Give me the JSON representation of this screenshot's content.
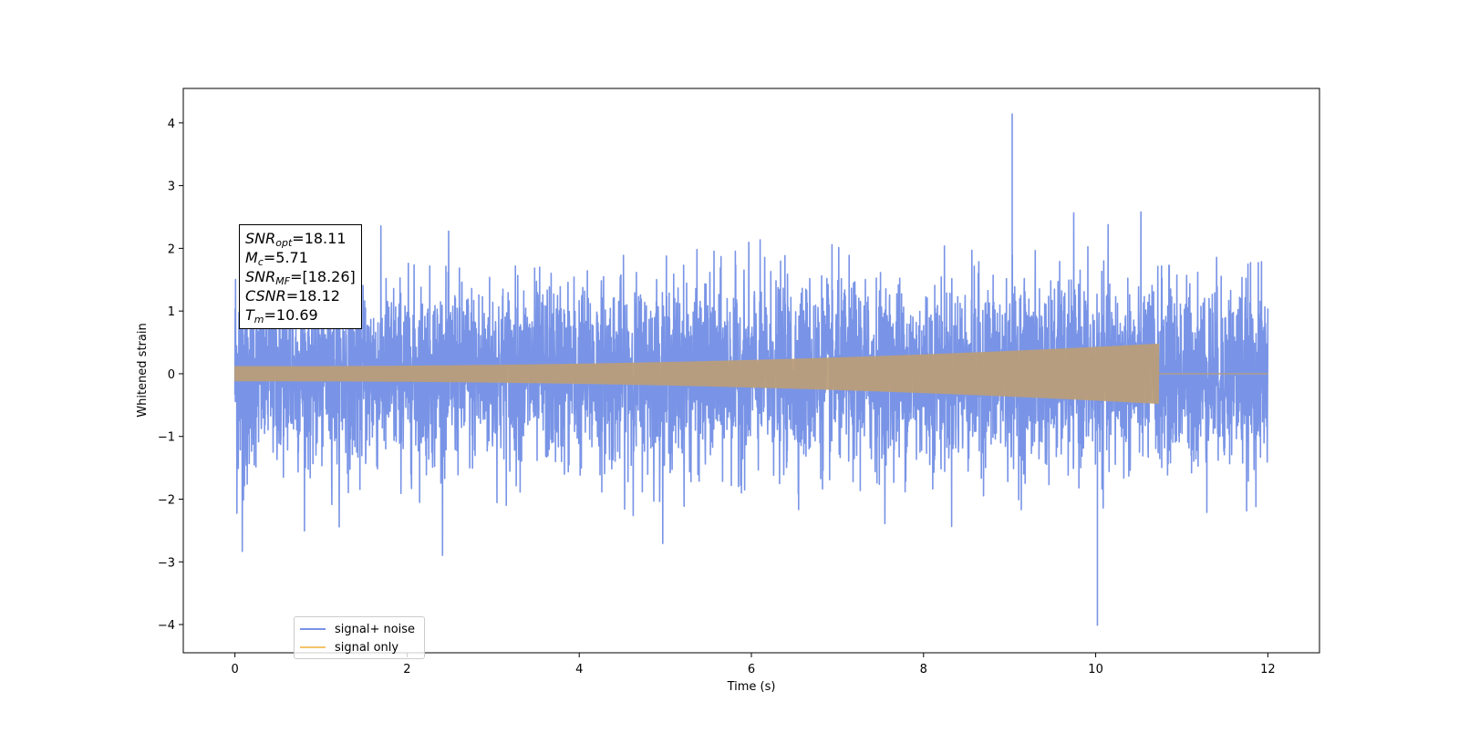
{
  "chart_data": {
    "type": "line",
    "title": "",
    "xlabel": "Time (s)",
    "ylabel": "Whitened strain",
    "xlim": [
      -0.6,
      12.6
    ],
    "ylim": [
      -4.45,
      4.55
    ],
    "x_ticks": [
      0,
      2,
      4,
      6,
      8,
      10,
      12
    ],
    "y_ticks": [
      -4,
      -3,
      -2,
      -1,
      0,
      1,
      2,
      3,
      4
    ],
    "grid": false,
    "legend_position": "lower-left",
    "series": [
      {
        "name": "signal+ noise",
        "color": "#7994e6",
        "description_values": {
          "t_start": 0,
          "t_end": 12,
          "approx_max": 4.15,
          "approx_max_t": 9.03,
          "approx_min": -4.02,
          "approx_min_t": 10.02
        }
      },
      {
        "name": "signal only",
        "color": "#f5c36b",
        "description_values": {
          "t_start": 0,
          "t_end": 12,
          "amplitude_start": 0.12,
          "amplitude_at_merger": 0.48,
          "merger_t": 10.73
        }
      }
    ],
    "annotation": [
      {
        "sym": "SNR",
        "sub": "opt",
        "value": "=18.11"
      },
      {
        "sym": "M",
        "sub": "c",
        "value": "=5.71"
      },
      {
        "sym": "SNR",
        "sub": "MF",
        "value": "=[18.26]"
      },
      {
        "sym": "CSNR",
        "sub": "",
        "value": "=18.12"
      },
      {
        "sym": "T",
        "sub": "m",
        "value": "=10.69"
      }
    ]
  },
  "colors": {
    "noise": "#7994e6",
    "signal": "#f5c36b",
    "overlap": "#b99d7a"
  }
}
